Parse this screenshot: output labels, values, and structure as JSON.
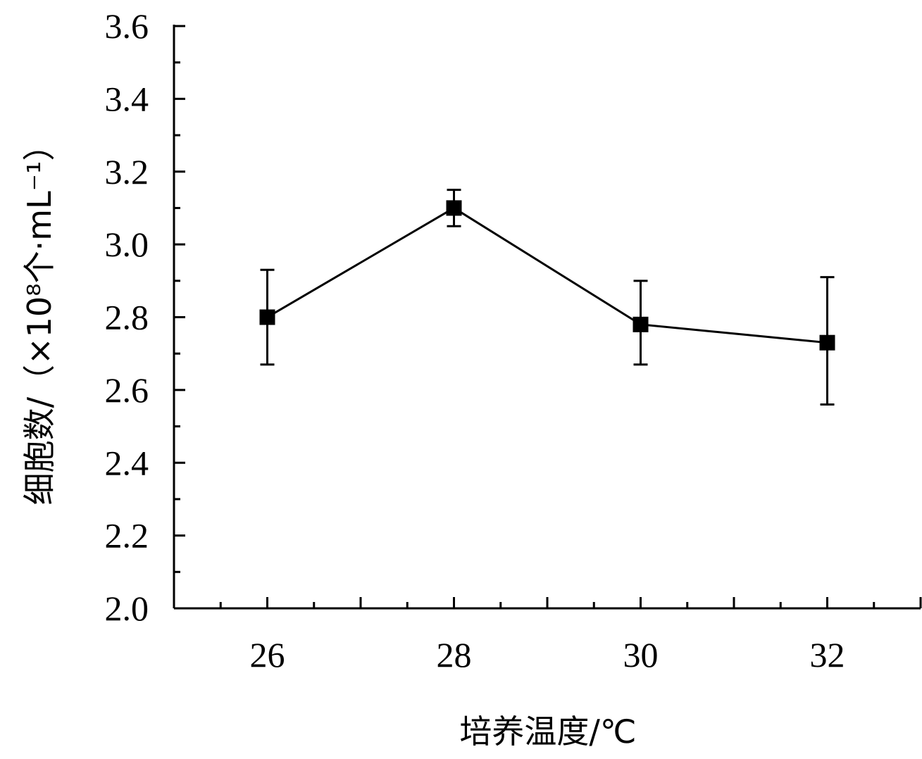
{
  "chart_data": {
    "type": "line",
    "x": [
      26,
      28,
      30,
      32
    ],
    "series": [
      {
        "values": [
          2.8,
          3.1,
          2.78,
          2.73
        ],
        "err_low": [
          2.67,
          3.05,
          2.67,
          2.56
        ],
        "err_high": [
          2.93,
          3.15,
          2.9,
          2.91
        ],
        "color": "#000000",
        "marker": "square"
      }
    ],
    "xlabel": "培养温度/℃",
    "ylabel": "细胞数/（×10⁸个·mL⁻¹）",
    "xlim": [
      25,
      33
    ],
    "ylim": [
      2.0,
      3.6
    ],
    "xticks": [
      26,
      28,
      30,
      32
    ],
    "xtick_labels": [
      "26",
      "28",
      "30",
      "32"
    ],
    "yticks": [
      2.0,
      2.2,
      2.4,
      2.6,
      2.8,
      3.0,
      3.2,
      3.4,
      3.6
    ],
    "ytick_labels": [
      "2.0",
      "2.2",
      "2.4",
      "2.6",
      "2.8",
      "3.0",
      "3.2",
      "3.4",
      "3.6"
    ],
    "grid": false,
    "legend": "none"
  }
}
